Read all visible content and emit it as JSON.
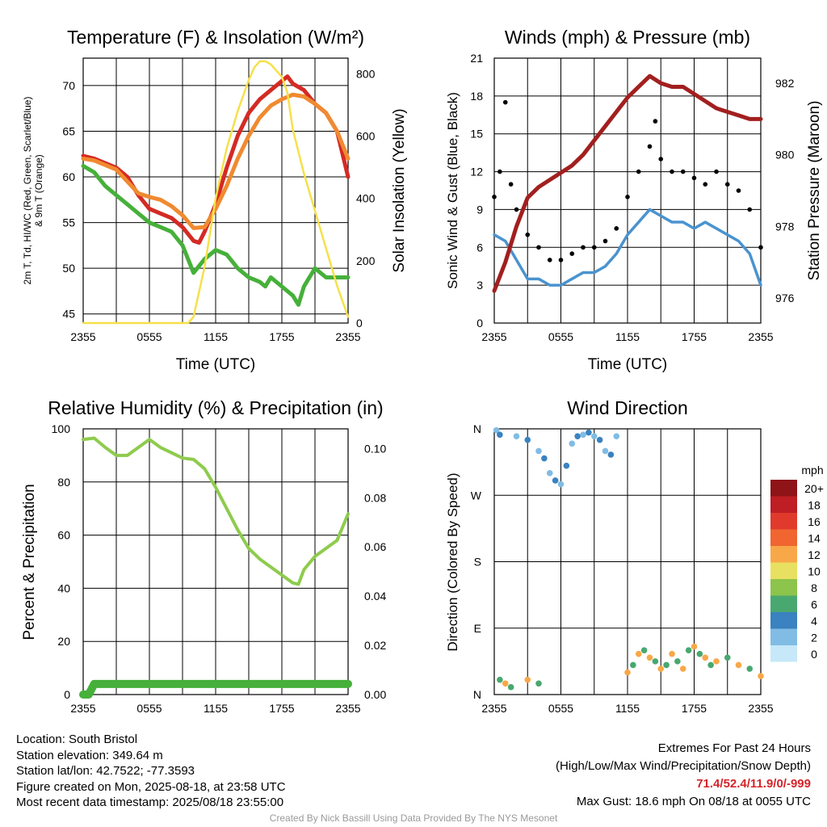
{
  "chart_data": [
    {
      "type": "line",
      "title": "Temperature (F) & Insolation (W/m²)",
      "xlabel": "Time (UTC)",
      "ylabel": "2m T, Td, HI/WC (Red, Green, Scarlet/Blue) & 9m T (Orange)",
      "y2label": "Solar Insolation (Yellow)",
      "x_ticks": [
        "2355",
        "0555",
        "1155",
        "1755",
        "2355"
      ],
      "ylim": [
        44,
        73
      ],
      "y_ticks": [
        45,
        50,
        55,
        60,
        65,
        70
      ],
      "y2lim": [
        0,
        850
      ],
      "y2_ticks": [
        0,
        200,
        400,
        600,
        800
      ],
      "series": [
        {
          "color": "#d42a24",
          "axis": "left",
          "x": [
            0,
            1,
            2,
            3,
            4,
            5,
            6,
            7,
            8,
            9,
            10,
            10.5,
            11,
            12,
            13,
            14,
            15,
            16,
            17,
            18,
            18.5,
            19,
            20,
            21,
            22,
            23,
            24
          ],
          "values": [
            62.3,
            62,
            61.5,
            61,
            60,
            58,
            56.5,
            56,
            55.5,
            54.5,
            53,
            52.8,
            54,
            57,
            61,
            64.5,
            67,
            68.5,
            69.5,
            70.5,
            71,
            70.2,
            69.5,
            68,
            67,
            65,
            60
          ]
        },
        {
          "color": "#f08a30",
          "axis": "left",
          "x": [
            0,
            1,
            2,
            3,
            4,
            5,
            6,
            7,
            8,
            9,
            10,
            11,
            12,
            13,
            14,
            15,
            16,
            17,
            18,
            19,
            20,
            21,
            22,
            23,
            24
          ],
          "values": [
            62,
            61.8,
            61.3,
            60.8,
            59.5,
            58.2,
            57.8,
            57.5,
            56.8,
            55.8,
            54.4,
            54.5,
            56.5,
            59,
            62,
            64.5,
            66.5,
            67.8,
            68.5,
            69,
            68.8,
            68,
            67,
            65,
            62
          ]
        },
        {
          "color": "#46b03a",
          "axis": "left",
          "x": [
            0,
            1,
            2,
            3,
            4,
            5,
            6,
            7,
            8,
            9,
            10,
            11,
            12,
            13,
            14,
            15,
            16,
            16.5,
            17,
            18,
            19,
            19.5,
            20,
            21,
            22,
            23,
            24
          ],
          "values": [
            61.2,
            60.5,
            59,
            58,
            57,
            56,
            55,
            54.5,
            54,
            52.5,
            49.5,
            51,
            52,
            51.5,
            50,
            49,
            48.5,
            48,
            49,
            48,
            47,
            46,
            48,
            50,
            49,
            49,
            49
          ]
        },
        {
          "color": "#f6e04a",
          "axis": "right",
          "x": [
            0,
            2,
            4,
            6,
            8,
            9.5,
            10,
            11,
            12,
            13,
            14,
            15,
            15.5,
            16,
            16.5,
            17,
            18,
            18.5,
            19,
            20,
            21,
            22,
            23,
            24
          ],
          "values": [
            0,
            0,
            0,
            0,
            0,
            0,
            20,
            180,
            400,
            560,
            680,
            780,
            820,
            840,
            840,
            830,
            790,
            740,
            620,
            480,
            360,
            240,
            120,
            20
          ]
        }
      ]
    },
    {
      "type": "scatter",
      "title": "Winds (mph) & Pressure (mb)",
      "xlabel": "Time (UTC)",
      "ylabel": "Sonic Wind & Gust (Blue, Black)",
      "y2label": "Station Pressure (Maroon)",
      "x_ticks": [
        "2355",
        "0555",
        "1155",
        "1755",
        "2355"
      ],
      "ylim": [
        0,
        21
      ],
      "y_ticks": [
        0,
        3,
        6,
        9,
        12,
        15,
        18,
        21
      ],
      "y2lim": [
        975.3,
        982.7
      ],
      "y2_ticks": [
        976,
        978,
        980,
        982
      ],
      "series": [
        {
          "name_hidden": "wind",
          "color": "#4a93cf",
          "axis": "left",
          "x": [
            0,
            1,
            2,
            3,
            4,
            5,
            6,
            7,
            8,
            9,
            10,
            11,
            12,
            13,
            14,
            15,
            16,
            17,
            18,
            19,
            20,
            21,
            22,
            23,
            24
          ],
          "values": [
            7,
            6.5,
            5,
            3.5,
            3.5,
            3,
            3,
            3.5,
            4,
            4,
            4.5,
            5.5,
            7,
            8,
            9,
            8.5,
            8,
            8,
            7.5,
            8,
            7.5,
            7,
            6.5,
            5.5,
            3
          ]
        },
        {
          "name_hidden": "gust",
          "color": "#000000",
          "axis": "left",
          "x": [
            0,
            0.5,
            1,
            1.5,
            2,
            3,
            4,
            5,
            6,
            7,
            8,
            9,
            10,
            11,
            12,
            13,
            14,
            14.5,
            15,
            16,
            17,
            18,
            19,
            20,
            21,
            22,
            23,
            24
          ],
          "values": [
            10,
            12,
            17.5,
            11,
            9,
            7,
            6,
            5,
            5,
            5.5,
            6,
            6,
            6.5,
            7.5,
            10,
            12,
            14,
            16,
            13,
            12,
            12,
            11.5,
            11,
            12,
            11,
            10.5,
            9,
            6
          ]
        },
        {
          "name_hidden": "pressure",
          "color": "#a21f1f",
          "axis": "right",
          "x": [
            0,
            1,
            2,
            3,
            4,
            5,
            6,
            7,
            8,
            9,
            10,
            11,
            12,
            13,
            14,
            15,
            16,
            17,
            18,
            19,
            20,
            21,
            22,
            23,
            24
          ],
          "values": [
            976.2,
            977,
            978,
            978.8,
            979.1,
            979.3,
            979.5,
            979.7,
            980,
            980.4,
            980.8,
            981.2,
            981.6,
            981.9,
            982.2,
            982,
            981.9,
            981.9,
            981.7,
            981.5,
            981.3,
            981.2,
            981.1,
            981,
            981
          ]
        }
      ]
    },
    {
      "type": "line",
      "title": "Relative Humidity (%) & Precipitation (in)",
      "ylabel": "Percent & Precipitation",
      "x_ticks": [
        "2355",
        "0555",
        "1155",
        "1755",
        "2355"
      ],
      "ylim": [
        0,
        100
      ],
      "y_ticks": [
        0,
        20,
        40,
        60,
        80,
        100
      ],
      "y2lim": [
        0,
        0.108
      ],
      "y2_ticks": [
        "0.00",
        "0.02",
        "0.04",
        "0.06",
        "0.08",
        "0.10"
      ],
      "series": [
        {
          "color": "#8ecb4d",
          "axis": "left",
          "x": [
            0,
            1,
            2,
            3,
            4,
            5,
            6,
            7,
            8,
            9,
            10,
            11,
            12,
            13,
            14,
            15,
            16,
            17,
            18,
            19,
            19.5,
            20,
            21,
            22,
            23,
            24
          ],
          "values": [
            96,
            96.5,
            93,
            90,
            90,
            93,
            96,
            93,
            91,
            89,
            88.5,
            85,
            78,
            70,
            62,
            55,
            51,
            48,
            45,
            42,
            41.5,
            47,
            52,
            55,
            58,
            68
          ]
        },
        {
          "color": "#46b03a",
          "axis": "left",
          "x": [
            0,
            0.5,
            1,
            2,
            4,
            8,
            12,
            16,
            20,
            24
          ],
          "values": [
            0,
            0,
            4,
            4,
            4,
            4,
            4,
            4,
            4,
            4
          ]
        }
      ]
    },
    {
      "type": "scatter",
      "title": "Wind Direction",
      "ylabel": "Direction (Colored By Speed)",
      "x_ticks": [
        "2355",
        "0555",
        "1155",
        "1755",
        "2355"
      ],
      "y_ticks": [
        "N",
        "E",
        "S",
        "W",
        "N"
      ],
      "ylim": [
        0,
        360
      ],
      "legend": {
        "title": "mph",
        "labels": [
          "20+",
          "18",
          "16",
          "14",
          "12",
          "10",
          "8",
          "6",
          "4",
          "2",
          "0"
        ],
        "colors": [
          "#8e1418",
          "#be1e24",
          "#e03a2c",
          "#f06530",
          "#f8a848",
          "#e8e060",
          "#8cc44c",
          "#48a870",
          "#3a82c0",
          "#80bce4",
          "#c6e8f8"
        ]
      },
      "series": [
        {
          "name_hidden": "north-cluster",
          "x": [
            0.2,
            0.5,
            2,
            3,
            4,
            4.5,
            5,
            5.5,
            6,
            6.5,
            7,
            7.5,
            8,
            8.5,
            9,
            9.5,
            10,
            10.5,
            11
          ],
          "values": [
            358,
            352,
            350,
            345,
            330,
            320,
            300,
            290,
            285,
            310,
            340,
            350,
            352,
            355,
            350,
            345,
            330,
            325,
            350
          ]
        },
        {
          "name_hidden": "east-south-cluster",
          "x": [
            0.5,
            1,
            1.5,
            3,
            4,
            12,
            12.5,
            13,
            13.5,
            14,
            14.5,
            15,
            15.5,
            16,
            16.5,
            17,
            17.5,
            18,
            18.5,
            19,
            19.5,
            20,
            21,
            22,
            23,
            24
          ],
          "values": [
            20,
            15,
            10,
            20,
            15,
            30,
            40,
            55,
            60,
            50,
            45,
            35,
            40,
            55,
            45,
            35,
            60,
            65,
            55,
            50,
            40,
            45,
            50,
            40,
            35,
            25
          ]
        }
      ]
    }
  ],
  "footer": {
    "location": "Location: South Bristol",
    "elevation": "Station elevation: 349.64 m",
    "latlon": "Station lat/lon: 42.7522; -77.3593",
    "created": "Figure created on Mon, 2025-08-18, at 23:58 UTC",
    "recent": "Most recent data timestamp: 2025/08/18 23:55:00",
    "extremes_title": "Extremes For Past 24 Hours",
    "extremes_sub": "(High/Low/Max Wind/Precipitation/Snow Depth)",
    "extremes_values": "71.4/52.4/11.9/0/-999",
    "max_gust": "Max Gust: 18.6 mph On 08/18 at 0055 UTC",
    "credit": "Created By Nick Bassill Using Data Provided By The NYS Mesonet"
  }
}
